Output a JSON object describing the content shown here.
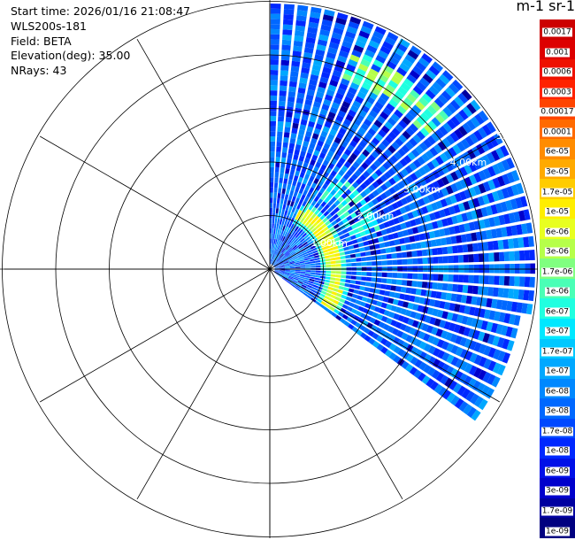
{
  "info": {
    "start_time": "Start time: 2026/01/16 21:08:47",
    "instrument": "WLS200s-181",
    "field": "Field: BETA",
    "elevation": "Elevation(deg): 35.00",
    "nrays": "NRays: 43"
  },
  "units_label": "m-1 sr-1",
  "colorbar": [
    {
      "label": "0.0017",
      "color": "#cc0000"
    },
    {
      "label": "0.001",
      "color": "#dd0000"
    },
    {
      "label": "0.0006",
      "color": "#ee1100"
    },
    {
      "label": "0.0003",
      "color": "#ff2200"
    },
    {
      "label": "0.00017",
      "color": "#ff4400"
    },
    {
      "label": "0.0001",
      "color": "#ff6a00"
    },
    {
      "label": "6e-05",
      "color": "#ff8c00"
    },
    {
      "label": "3e-05",
      "color": "#ffaa00"
    },
    {
      "label": "1.7e-05",
      "color": "#ffcc00"
    },
    {
      "label": "1e-05",
      "color": "#ffee00"
    },
    {
      "label": "6e-06",
      "color": "#e8ff20"
    },
    {
      "label": "3e-06",
      "color": "#b6ff4a"
    },
    {
      "label": "1.7e-06",
      "color": "#80ff80"
    },
    {
      "label": "1e-06",
      "color": "#4affb6"
    },
    {
      "label": "6e-07",
      "color": "#20ffe0"
    },
    {
      "label": "3e-07",
      "color": "#00e8ff"
    },
    {
      "label": "1.7e-07",
      "color": "#00c8ff"
    },
    {
      "label": "1e-07",
      "color": "#00a8ff"
    },
    {
      "label": "6e-08",
      "color": "#0088ff"
    },
    {
      "label": "3e-08",
      "color": "#0068ff"
    },
    {
      "label": "1.7e-08",
      "color": "#0048ff"
    },
    {
      "label": "1e-08",
      "color": "#0028ff"
    },
    {
      "label": "6e-09",
      "color": "#0010e8"
    },
    {
      "label": "3e-09",
      "color": "#0000cc"
    },
    {
      "label": "1.7e-09",
      "color": "#0000a0"
    },
    {
      "label": "1e-09",
      "color": "#000080"
    }
  ],
  "chart_data": {
    "type": "heatmap",
    "projection": "polar (PPI)",
    "range_rings": [
      "1.00km",
      "2.00km",
      "3.00km",
      "4.00km",
      "5.00km"
    ],
    "sector_deg": [
      0,
      127
    ],
    "nrays": 43
  }
}
